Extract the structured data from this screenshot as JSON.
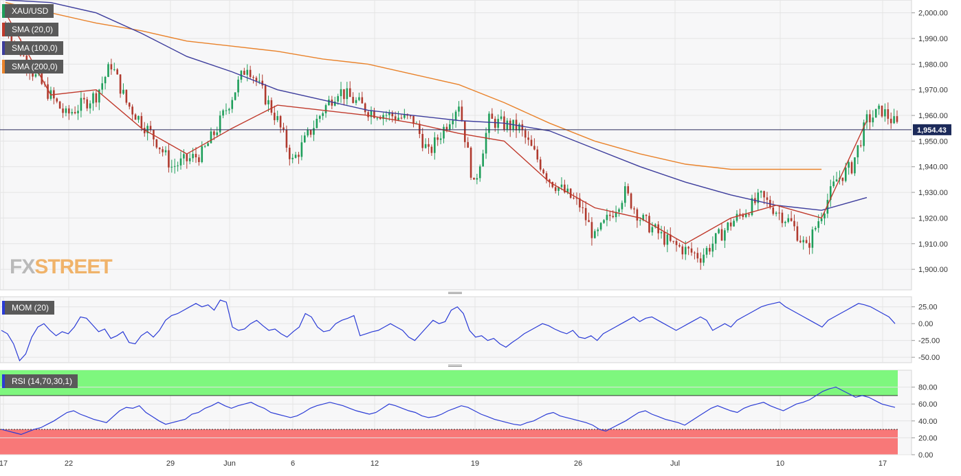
{
  "chart_data": [
    {
      "type": "candlestick",
      "title": "XAU/USD",
      "series": [
        {
          "name": "SMA (20,0)",
          "color": "#c0392b"
        },
        {
          "name": "SMA (100,0)",
          "color": "#3c3c9c"
        },
        {
          "name": "SMA (200,0)",
          "color": "#e9822a"
        }
      ],
      "candle_colors": {
        "up": "#1e9e5a",
        "down": "#b03a2e"
      },
      "last_price": 1954.43,
      "last_price_label": "1,954.43",
      "ylim": [
        1892,
        2005
      ],
      "y_ticks": [
        1900,
        1910,
        1920,
        1930,
        1940,
        1950,
        1960,
        1970,
        1980,
        1990,
        2000
      ],
      "y_tick_labels": [
        "1,900.00",
        "1,910.00",
        "1,920.00",
        "1,930.00",
        "1,940.00",
        "1,950.00",
        "1,960.00",
        "1,970.00",
        "1,980.00",
        "1,990.00",
        "2,000.00"
      ],
      "sma_200": [
        [
          0,
          2004
        ],
        [
          15,
          2000
        ],
        [
          30,
          1996
        ],
        [
          45,
          1993
        ],
        [
          60,
          1989
        ],
        [
          75,
          1987
        ],
        [
          90,
          1985
        ],
        [
          105,
          1982
        ],
        [
          120,
          1980
        ],
        [
          135,
          1976
        ],
        [
          150,
          1972
        ],
        [
          165,
          1965
        ],
        [
          180,
          1957
        ],
        [
          195,
          1950
        ],
        [
          210,
          1945
        ],
        [
          225,
          1941
        ],
        [
          240,
          1939
        ],
        [
          255,
          1939
        ],
        [
          270,
          1939
        ]
      ],
      "sma_100": [
        [
          0,
          2005
        ],
        [
          15,
          2004
        ],
        [
          30,
          2000
        ],
        [
          45,
          1992
        ],
        [
          60,
          1983
        ],
        [
          75,
          1977
        ],
        [
          90,
          1970
        ],
        [
          105,
          1966
        ],
        [
          120,
          1962
        ],
        [
          135,
          1960
        ],
        [
          150,
          1958
        ],
        [
          165,
          1957
        ],
        [
          180,
          1954
        ],
        [
          195,
          1947
        ],
        [
          210,
          1940
        ],
        [
          225,
          1934
        ],
        [
          240,
          1929
        ],
        [
          255,
          1925
        ],
        [
          270,
          1923
        ],
        [
          285,
          1928
        ]
      ],
      "sma_20": [
        [
          0,
          2000
        ],
        [
          15,
          1968
        ],
        [
          30,
          1970
        ],
        [
          45,
          1955
        ],
        [
          60,
          1945
        ],
        [
          75,
          1955
        ],
        [
          90,
          1964
        ],
        [
          105,
          1962
        ],
        [
          120,
          1960
        ],
        [
          135,
          1957
        ],
        [
          150,
          1953
        ],
        [
          165,
          1950
        ],
        [
          180,
          1934
        ],
        [
          195,
          1924
        ],
        [
          210,
          1920
        ],
        [
          225,
          1910
        ],
        [
          240,
          1920
        ],
        [
          255,
          1925
        ],
        [
          270,
          1920
        ],
        [
          285,
          1958
        ]
      ],
      "price_path": [
        [
          0,
          1995
        ],
        [
          10,
          1975
        ],
        [
          20,
          1960
        ],
        [
          30,
          1968
        ],
        [
          35,
          1980
        ],
        [
          40,
          1965
        ],
        [
          50,
          1950
        ],
        [
          55,
          1940
        ],
        [
          65,
          1945
        ],
        [
          70,
          1955
        ],
        [
          80,
          1980
        ],
        [
          90,
          1958
        ],
        [
          95,
          1942
        ],
        [
          105,
          1962
        ],
        [
          110,
          1970
        ],
        [
          120,
          1962
        ],
        [
          135,
          1958
        ],
        [
          140,
          1945
        ],
        [
          150,
          1965
        ],
        [
          155,
          1932
        ],
        [
          160,
          1958
        ],
        [
          170,
          1955
        ],
        [
          180,
          1935
        ],
        [
          190,
          1925
        ],
        [
          195,
          1912
        ],
        [
          205,
          1930
        ],
        [
          210,
          1920
        ],
        [
          220,
          1910
        ],
        [
          230,
          1905
        ],
        [
          240,
          1918
        ],
        [
          250,
          1928
        ],
        [
          260,
          1918
        ],
        [
          265,
          1908
        ],
        [
          270,
          1922
        ],
        [
          275,
          1935
        ],
        [
          280,
          1940
        ],
        [
          285,
          1958
        ],
        [
          290,
          1962
        ],
        [
          295,
          1956
        ]
      ]
    },
    {
      "type": "line",
      "title": "MOM (20)",
      "series": [
        {
          "name": "MOM (20)",
          "color": "#2a3bd6"
        }
      ],
      "ylim": [
        -58,
        40
      ],
      "y_ticks": [
        -50,
        -25,
        0,
        25
      ],
      "y_tick_labels": [
        "-50.00",
        "-25.00",
        "0.00",
        "25.00"
      ],
      "values": [
        -10,
        -15,
        -30,
        -55,
        -45,
        -20,
        -5,
        0,
        -10,
        -18,
        -12,
        -15,
        -5,
        10,
        8,
        -2,
        -12,
        -8,
        -22,
        -18,
        -12,
        -28,
        -30,
        -18,
        -12,
        -20,
        -10,
        5,
        12,
        15,
        20,
        25,
        30,
        25,
        28,
        20,
        35,
        32,
        -5,
        -10,
        -8,
        0,
        5,
        -3,
        -10,
        -8,
        -15,
        -20,
        -12,
        -5,
        15,
        10,
        -5,
        -12,
        -10,
        0,
        5,
        8,
        12,
        -18,
        -15,
        -12,
        -10,
        -5,
        0,
        -5,
        -10,
        -20,
        -25,
        -15,
        -5,
        5,
        0,
        3,
        20,
        25,
        15,
        -10,
        -20,
        -18,
        -25,
        -22,
        -30,
        -35,
        -28,
        -22,
        -15,
        -10,
        -5,
        0,
        -3,
        -8,
        -12,
        -15,
        -10,
        -20,
        -22,
        -18,
        -25,
        -15,
        -10,
        -5,
        0,
        5,
        10,
        3,
        8,
        10,
        5,
        0,
        -5,
        -10,
        -5,
        0,
        5,
        10,
        5,
        -10,
        -5,
        0,
        -5,
        5,
        10,
        15,
        20,
        25,
        28,
        30,
        32,
        25,
        20,
        15,
        10,
        5,
        0,
        -5,
        5,
        10,
        15,
        20,
        25,
        30,
        28,
        25,
        20,
        15,
        10,
        0
      ]
    },
    {
      "type": "line",
      "title": "RSI (14,70,30,1)",
      "series": [
        {
          "name": "RSI (14,70,30,1)",
          "color": "#2a3bd6"
        }
      ],
      "ylim": [
        0,
        100
      ],
      "y_ticks": [
        0,
        20,
        40,
        60,
        80
      ],
      "y_tick_labels": [
        "0.00",
        "20.00",
        "40.00",
        "60.00",
        "80.00"
      ],
      "overbought": 70,
      "oversold": 30,
      "overbought_color": "#7ef77e",
      "oversold_color": "#f87878",
      "values": [
        30,
        28,
        26,
        24,
        27,
        30,
        32,
        36,
        40,
        45,
        50,
        52,
        48,
        45,
        42,
        40,
        38,
        45,
        52,
        56,
        55,
        58,
        50,
        45,
        40,
        36,
        38,
        40,
        42,
        48,
        50,
        55,
        58,
        62,
        58,
        55,
        58,
        60,
        62,
        58,
        55,
        50,
        48,
        46,
        44,
        46,
        50,
        55,
        58,
        60,
        62,
        60,
        58,
        55,
        52,
        50,
        48,
        50,
        55,
        60,
        58,
        55,
        52,
        50,
        46,
        44,
        45,
        48,
        52,
        55,
        58,
        56,
        52,
        48,
        45,
        42,
        40,
        38,
        36,
        35,
        38,
        40,
        44,
        48,
        50,
        46,
        44,
        42,
        40,
        38,
        35,
        30,
        28,
        32,
        36,
        40,
        45,
        50,
        52,
        48,
        45,
        42,
        40,
        38,
        35,
        40,
        45,
        50,
        55,
        58,
        55,
        52,
        50,
        55,
        58,
        60,
        62,
        58,
        55,
        52,
        56,
        60,
        62,
        65,
        70,
        75,
        78,
        80,
        76,
        72,
        68,
        70,
        68,
        64,
        60,
        58,
        56
      ]
    },
    {
      "type": "axis",
      "x_tick_labels": [
        "17",
        "22",
        "29",
        "Jun",
        "6",
        "12",
        "19",
        "26",
        "Jul",
        "10",
        "17"
      ]
    }
  ]
}
